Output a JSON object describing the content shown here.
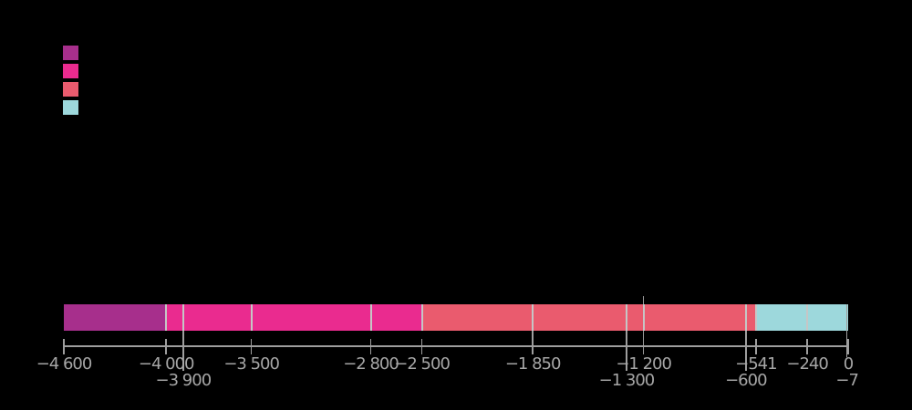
{
  "background_color": "#000000",
  "legend": {
    "position": "upper-left",
    "swatches": [
      {
        "name": "legend-swatch-1",
        "color": "#A72F8C"
      },
      {
        "name": "legend-swatch-2",
        "color": "#EA2B8F"
      },
      {
        "name": "legend-swatch-3",
        "color": "#EA5B6E"
      },
      {
        "name": "legend-swatch-4",
        "color": "#9DD8DC"
      }
    ]
  },
  "chart_data": {
    "type": "bar",
    "subtype": "horizontal-timeline",
    "x_range": [
      -4600,
      0
    ],
    "grid": false,
    "legend_position": "upper-left",
    "colors": {
      "axis": "#9E9E9E",
      "tick": "#9E9E9E",
      "label": "#A6A6A6",
      "divider": "#C6C6C6",
      "marker": "#9E9E9E"
    },
    "segments": [
      {
        "start": -4600,
        "end": -4000,
        "color": "#A72F8C"
      },
      {
        "start": -4000,
        "end": -2500,
        "color": "#EA2B8F"
      },
      {
        "start": -2500,
        "end": -541,
        "color": "#EA5B6E"
      },
      {
        "start": -541,
        "end": 0,
        "color": "#9DD8DC"
      }
    ],
    "boundaries": [
      -4000,
      -3900,
      -3500,
      -2800,
      -2500,
      -1850,
      -1300,
      -1200,
      -600,
      -541,
      -240
    ],
    "markers": [
      {
        "value": -3900,
        "row": 2,
        "connects_bar": true
      },
      {
        "value": -1850,
        "row": 1,
        "connects_bar": true
      },
      {
        "value": -1300,
        "row": 2,
        "connects_bar": true
      },
      {
        "value": -1200,
        "row": 1,
        "connects_bar": true,
        "extends_above_bar": true
      },
      {
        "value": -600,
        "row": 2,
        "connects_bar": true
      },
      {
        "value": -7,
        "row": 2,
        "edge": true
      }
    ],
    "ticks_row1": [
      {
        "value": -4600,
        "label": "−4 600"
      },
      {
        "value": -4000,
        "label": "−4 000"
      },
      {
        "value": -3500,
        "label": "−3 500"
      },
      {
        "value": -2800,
        "label": "−2 800"
      },
      {
        "value": -2500,
        "label": "−2 500"
      },
      {
        "value": -1850,
        "label": "−1 850"
      },
      {
        "value": -1200,
        "label": "−1 200"
      },
      {
        "value": -541,
        "label": "−541"
      },
      {
        "value": -240,
        "label": "−240"
      },
      {
        "value": 0,
        "label": "0"
      }
    ],
    "ticks_row2": [
      {
        "value": -3900,
        "label": "−3 900"
      },
      {
        "value": -1300,
        "label": "−1 300"
      },
      {
        "value": -600,
        "label": "−600"
      },
      {
        "value": -7,
        "label": "−7"
      }
    ]
  }
}
